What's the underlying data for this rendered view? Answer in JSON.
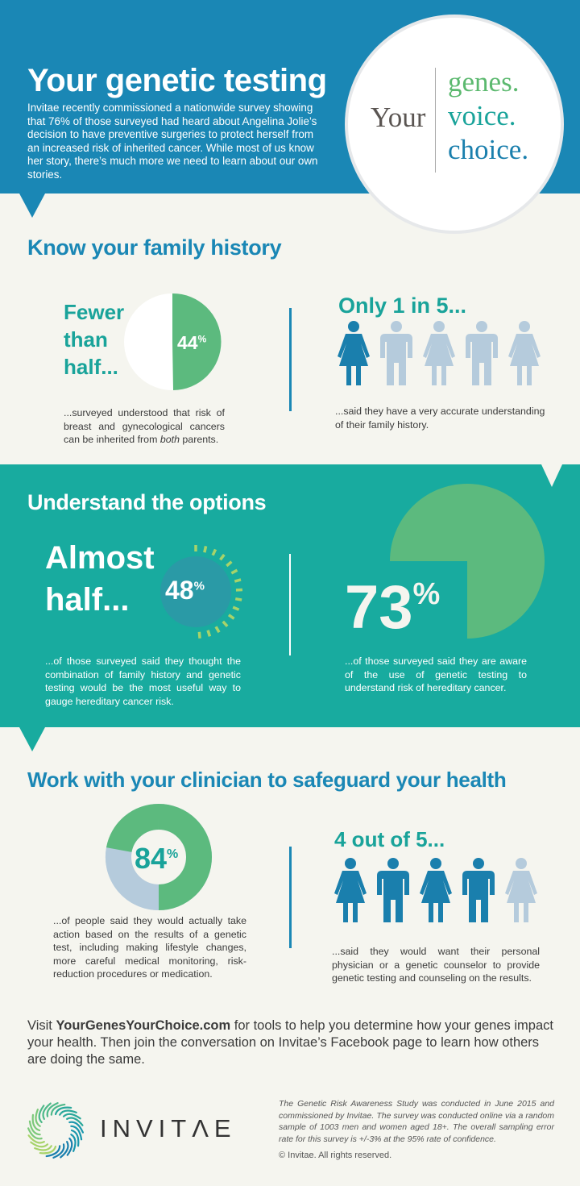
{
  "header": {
    "title": "Your genetic testing",
    "body": "Invitae recently commissioned a nationwide survey showing that 76% of those surveyed had heard about Angelina Jolie’s decision to have preventive surgeries to protect herself from an increased risk of inherited cancer. While most of us know her story, there’s much more we need to learn about our own stories.",
    "badge": {
      "prefix": "Your",
      "words": [
        "genes.",
        "voice.",
        "choice."
      ],
      "word_colors": [
        "#5cb96f",
        "#19a39a",
        "#1a7fad"
      ]
    }
  },
  "colors": {
    "blue": "#1a87b5",
    "teal": "#18ab9f",
    "green": "#5cba7e",
    "light_blue_gray": "#b5cbdc",
    "background": "#f5f5ef"
  },
  "sections": [
    {
      "title": "Know your family history",
      "left": {
        "headline": [
          "Fewer",
          "than",
          "half..."
        ],
        "stat": "44",
        "stat_suffix": "%",
        "caption_pre": "...surveyed understood that risk of breast and gynecological cancers can be inherited from ",
        "caption_em": "both",
        "caption_post": " parents."
      },
      "right": {
        "headline": "Only 1 in 5...",
        "figures": [
          "female",
          "male",
          "female",
          "male",
          "female"
        ],
        "highlighted": 1,
        "caption": "...said they have a very accurate understanding of their family history."
      }
    },
    {
      "title": "Understand the options",
      "left": {
        "headline": [
          "Almost",
          "half..."
        ],
        "stat": "48",
        "stat_suffix": "%",
        "caption": "...of those surveyed said they thought the combination of family history and genetic testing would be the most useful way to gauge hereditary cancer risk."
      },
      "right": {
        "stat": "73",
        "stat_suffix": "%",
        "caption": "...of those surveyed said they are aware of the use of genetic testing to understand risk of hereditary cancer."
      }
    },
    {
      "title": "Work with your clinician to safeguard your health",
      "left": {
        "stat": "84",
        "stat_suffix": "%",
        "caption": "...of people said they would actually take action based on the results of a genetic test, including making lifestyle changes, more careful medical monitoring, risk-reduction procedures or medication."
      },
      "right": {
        "headline": "4 out of 5...",
        "figures": [
          "female",
          "male",
          "female",
          "male",
          "female"
        ],
        "highlighted": 4,
        "caption": "...said they would want their personal physician or a genetic counselor to provide genetic testing and counseling on the results."
      }
    }
  ],
  "cta": {
    "pre": "Visit ",
    "link": "YourGenesYourChoice.com",
    "post": " for tools to help you determine how your genes impact your health. Then join the conversation on Invitae’s Facebook page to learn how others are doing the same."
  },
  "footer": {
    "logo_text": "INVITΛE",
    "methodology": "The Genetic Risk Awareness Study was conducted in June 2015 and commissioned by Invitae. The survey was conducted online via a random sample of 1003 men and women aged 18+. The overall sampling error rate for this survey is +/-3% at the 95% rate of confidence.",
    "copyright": "© Invitae. All rights reserved."
  },
  "chart_data": [
    {
      "type": "pie",
      "title": "Fewer than half...",
      "categories": [
        "understood",
        "other"
      ],
      "values": [
        44,
        56
      ],
      "colors": [
        "#5cba7e",
        "#ffffff"
      ]
    },
    {
      "type": "pictogram",
      "title": "Only 1 in 5...",
      "values": [
        1,
        5
      ]
    },
    {
      "type": "radial",
      "title": "Almost half...",
      "values": [
        48
      ]
    },
    {
      "type": "pie",
      "title": "73%",
      "categories": [
        "aware",
        "other"
      ],
      "values": [
        73,
        27
      ]
    },
    {
      "type": "donut",
      "title": "84%",
      "categories": [
        "would take action",
        "other"
      ],
      "values": [
        84,
        16
      ],
      "colors": [
        "#5cba7e",
        "#b5cbdc"
      ]
    },
    {
      "type": "pictogram",
      "title": "4 out of 5...",
      "values": [
        4,
        5
      ]
    }
  ]
}
